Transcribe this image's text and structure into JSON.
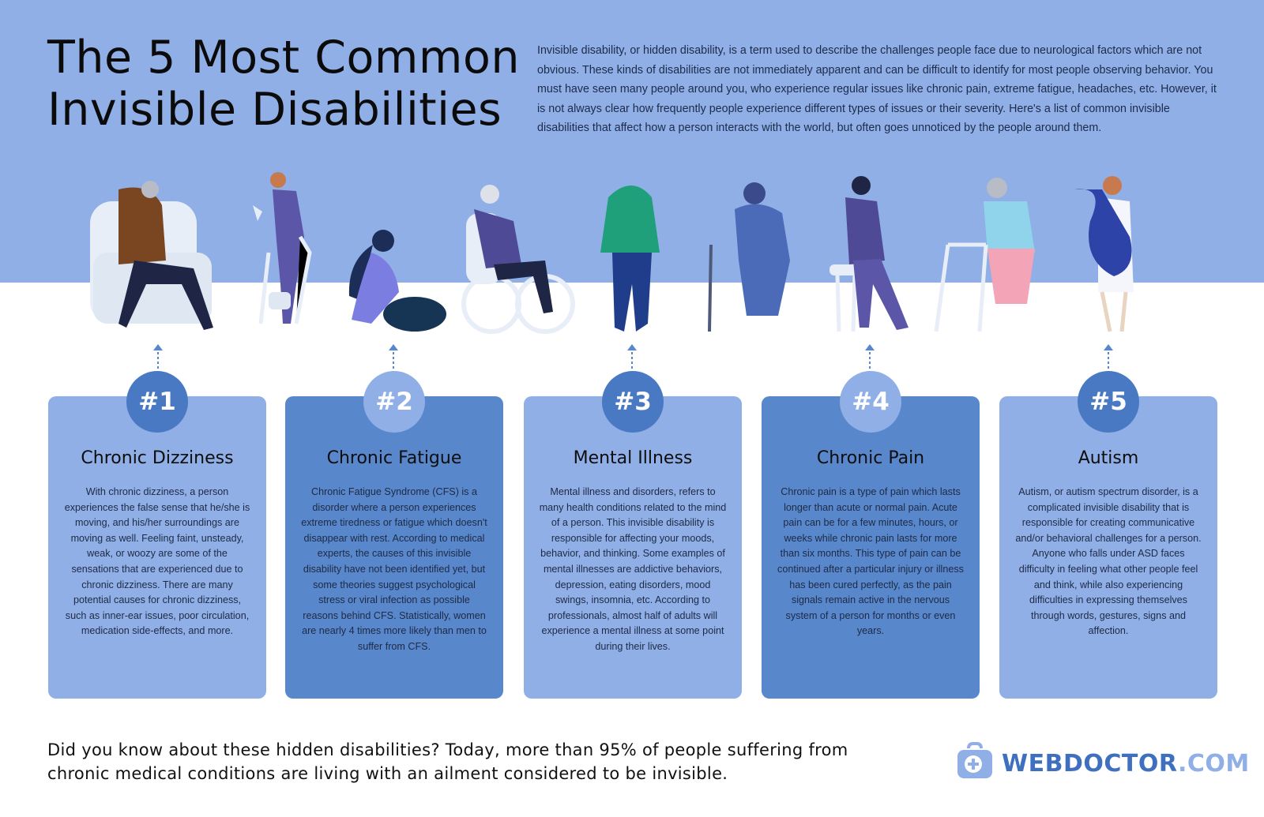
{
  "header": {
    "title_line1": "The 5 Most Common",
    "title_line2": "Invisible Disabilities",
    "intro": "Invisible disability, or hidden disability, is a term used to describe the challenges people face due to neurological factors which are not obvious. These kinds of disabilities are not immediately apparent and can be difficult to identify for most people observing behavior. You must have seen many people around you, who experience regular issues like chronic pain, extreme fatigue, headaches, etc. However, it is not always clear how frequently people experience different types of issues or their severity. Here's a list of common invisible disabilities that affect how a person interacts with the world, but often goes unnoticed by the people around them."
  },
  "colors": {
    "band": "#8fafe6",
    "card_light": "#8fafe6",
    "card_dark": "#5887cb",
    "badge_dark": "#4a79c3",
    "logo_dark": "#3f6fbf"
  },
  "cards": [
    {
      "number": "#1",
      "title": "Chronic Dizziness",
      "body": "With chronic dizziness, a person experiences the false sense that he/she is moving, and his/her surroundings are moving as well. Feeling faint, unsteady, weak, or woozy are some of the sensations that are experienced due to chronic dizziness. There are many potential causes for chronic dizziness, such as inner-ear issues, poor circulation, medication side-effects, and more."
    },
    {
      "number": "#2",
      "title": "Chronic Fatigue",
      "body": "Chronic Fatigue Syndrome (CFS) is a disorder where a person experiences extreme tiredness or fatigue which doesn't disappear with rest. According to medical experts, the causes of this invisible disability have not been identified yet, but some theories suggest psychological stress or viral infection as possible reasons behind CFS. Statistically, women are nearly 4 times more likely than men to suffer from CFS."
    },
    {
      "number": "#3",
      "title": "Mental Illness",
      "body": "Mental illness and disorders, refers to many health conditions related to the mind of a person. This invisible disability is responsible for affecting your moods, behavior, and thinking. Some examples of mental illnesses are addictive behaviors, depression, eating disorders, mood swings, insomnia, etc. According to professionals, almost half of adults will experience a mental illness at some point during their lives."
    },
    {
      "number": "#4",
      "title": "Chronic Pain",
      "body": "Chronic pain is a type of pain which lasts longer than acute or normal pain. Acute pain can be for a few minutes, hours, or weeks while chronic pain lasts for more than six months. This type of pain can be continued after a particular injury or illness has been cured perfectly, as the pain signals remain active in the nervous system of a person for months or even years."
    },
    {
      "number": "#5",
      "title": "Autism",
      "body": "Autism, or autism spectrum disorder, is a complicated invisible disability that is responsible for creating communicative and/or behavioral challenges for a person. Anyone who falls under ASD faces difficulty in feeling what other people feel and think, while also experiencing difficulties in expressing themselves through words, gestures, signs and affection."
    }
  ],
  "footer": {
    "text": "Did you know about these hidden disabilities? Today, more than 95% of people suffering from chronic medical conditions are living with an ailment considered to be invisible.",
    "logo_part1": "WEBDOCTOR",
    "logo_part2": ".COM"
  }
}
